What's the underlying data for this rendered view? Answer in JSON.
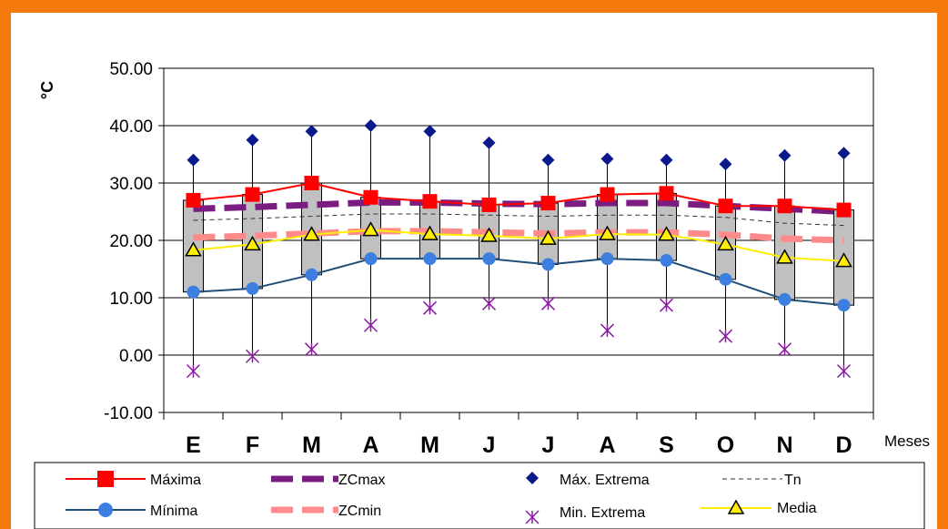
{
  "colors": {
    "frame": "#f57a0a",
    "maxima": "#ff0000",
    "minima": "#1f4e79",
    "minima_marker": "#3d7fe0",
    "zcmax": "#7b1c80",
    "zcmin": "#ff8a8a",
    "max_extrema": "#0a1a8c",
    "min_extrema": "#8a1aa0",
    "tn": "#333333",
    "media": "#ffee00",
    "box_fill": "#c0c0c0"
  },
  "chart_data": {
    "type": "line",
    "ylabel": "°C",
    "xlabel": "Meses",
    "ylim": [
      -10,
      50
    ],
    "yticks": [
      "50.00",
      "40.00",
      "30.00",
      "20.00",
      "10.00",
      "0.00",
      "-10.00"
    ],
    "ytick_values": [
      50,
      40,
      30,
      20,
      10,
      0,
      -10
    ],
    "grid": true,
    "categories": [
      "E",
      "F",
      "M",
      "A",
      "M",
      "J",
      "J",
      "A",
      "S",
      "O",
      "N",
      "D"
    ],
    "series": [
      {
        "name": "Máxima",
        "key": "maxima",
        "values": [
          27,
          28,
          30,
          27.5,
          26.8,
          26.2,
          26.5,
          28,
          28.2,
          26,
          26,
          25.3
        ]
      },
      {
        "name": "Mínima",
        "key": "minima",
        "values": [
          11,
          11.6,
          14,
          16.8,
          16.8,
          16.8,
          15.8,
          16.8,
          16.5,
          13.2,
          9.7,
          8.7
        ]
      },
      {
        "name": "ZCmax",
        "key": "zcmax",
        "values": [
          25.5,
          25.8,
          26.2,
          26.6,
          26.6,
          26.4,
          26.3,
          26.5,
          26.5,
          26,
          25.5,
          25
        ]
      },
      {
        "name": "ZCmin",
        "key": "zcmin",
        "values": [
          20.5,
          20.8,
          21.2,
          21.6,
          21.6,
          21.4,
          21.2,
          21.4,
          21.4,
          21,
          20.3,
          20
        ]
      },
      {
        "name": "Máx. Extrema",
        "key": "max_extrema",
        "values": [
          34,
          37.5,
          39,
          40,
          39,
          37,
          34,
          34.2,
          34,
          33.3,
          34.8,
          35.2
        ]
      },
      {
        "name": "Min. Extrema",
        "key": "min_extrema",
        "values": [
          -2.8,
          -0.2,
          1,
          5.2,
          8.2,
          9,
          9,
          4.3,
          8.7,
          3.3,
          1,
          -2.8
        ]
      },
      {
        "name": "Tn",
        "key": "tn",
        "values": [
          23.5,
          23.8,
          24.2,
          24.6,
          24.6,
          24.4,
          24.2,
          24.4,
          24.4,
          24,
          23,
          22.6
        ]
      },
      {
        "name": "Media",
        "key": "media",
        "values": [
          18.3,
          19.3,
          21,
          21.8,
          21.1,
          20.8,
          20.3,
          21.1,
          21,
          19.3,
          17,
          16.4
        ]
      }
    ],
    "legend_position": "bottom"
  }
}
